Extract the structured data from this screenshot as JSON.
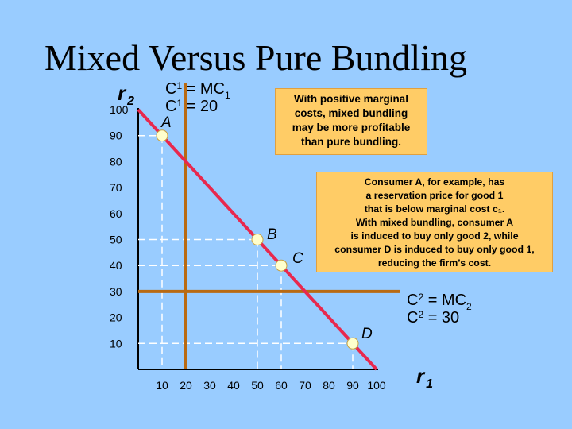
{
  "title": "Mixed Versus Pure Bundling",
  "colors": {
    "background": "#99ccff",
    "budget_line": "#e8284e",
    "mc_line": "#b96a12",
    "grid_dashes": "#ffffff",
    "point_fill": "#ffffcc",
    "note_fill": "#ffcc66"
  },
  "chart_data": {
    "type": "line",
    "xlabel": {
      "symbol": "r",
      "sub": "1"
    },
    "ylabel": {
      "symbol": "r",
      "sub": "2"
    },
    "x_ticks": [
      10,
      20,
      30,
      40,
      50,
      60,
      70,
      80,
      90,
      100
    ],
    "y_ticks": [
      10,
      20,
      30,
      40,
      50,
      60,
      70,
      80,
      90,
      100
    ],
    "xlim": [
      0,
      100
    ],
    "ylim": [
      0,
      100
    ],
    "grid": false,
    "series": [
      {
        "values": [
          [
            0,
            100
          ],
          [
            100,
            0
          ]
        ]
      }
    ],
    "mc_lines": [
      {
        "axis": "x",
        "value": 20,
        "label_lines": [
          {
            "main": "C",
            "sub": "1",
            "rest": " = MC",
            "sub2": "1"
          },
          {
            "main": "C",
            "sub": "1",
            "rest": " = 20",
            "sub2": ""
          }
        ]
      },
      {
        "axis": "y",
        "value": 30,
        "label_lines": [
          {
            "main": "C",
            "sub": "2",
            "rest": " = MC",
            "sub2": "2"
          },
          {
            "main": "C",
            "sub": "2",
            "rest": " = 30",
            "sub2": ""
          }
        ]
      }
    ],
    "consumers": [
      {
        "label": "A",
        "x": 10,
        "y": 90
      },
      {
        "label": "B",
        "x": 50,
        "y": 50
      },
      {
        "label": "C",
        "x": 60,
        "y": 40
      },
      {
        "label": "D",
        "x": 90,
        "y": 10
      }
    ]
  },
  "notes": {
    "mixed_profitable": [
      "With positive marginal",
      "costs, mixed bundling",
      "may be more profitable",
      "than pure bundling."
    ],
    "consumer_example": [
      "Consumer A, for example,  has",
      "a reservation price for good 1",
      "that is below marginal cost c₁.",
      "With mixed bundling, consumer A",
      "is induced to buy only good 2, while",
      "consumer D is induced to buy only good 1,",
      "reducing the firm’s cost."
    ]
  }
}
